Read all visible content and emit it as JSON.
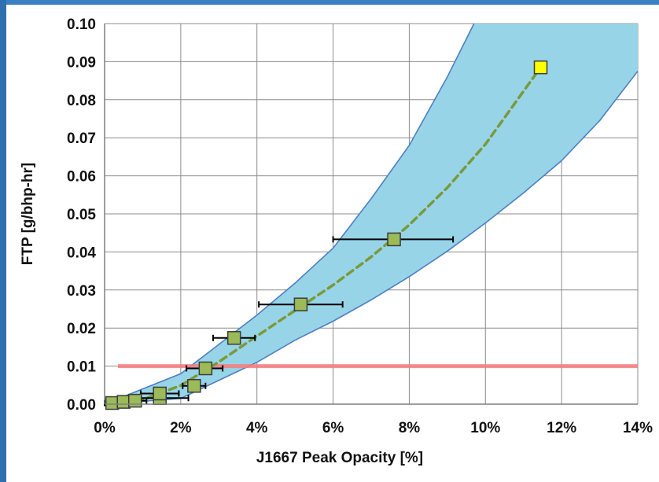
{
  "chart_data": {
    "type": "scatter",
    "title": "",
    "xlabel": "J1667 Peak Opacity [%]",
    "ylabel": "FTP [g/bhp-hr]",
    "xlim": [
      0,
      14
    ],
    "ylim": [
      0,
      0.1
    ],
    "x_ticks": [
      0,
      2,
      4,
      6,
      8,
      10,
      12,
      14
    ],
    "x_tick_labels": [
      "0%",
      "2%",
      "4%",
      "6%",
      "8%",
      "10%",
      "12%",
      "14%"
    ],
    "y_ticks": [
      0,
      0.01,
      0.02,
      0.03,
      0.04,
      0.05,
      0.06,
      0.07,
      0.08,
      0.09,
      0.1
    ],
    "y_tick_labels": [
      "0.00",
      "0.01",
      "0.02",
      "0.03",
      "0.04",
      "0.05",
      "0.06",
      "0.07",
      "0.08",
      "0.09",
      "0.10"
    ],
    "grid": true,
    "series": [
      {
        "points": [
          {
            "x": 0.2,
            "y": 0.0003,
            "err_low": 0.2,
            "err_high": 0.2
          },
          {
            "x": 0.5,
            "y": 0.0006,
            "err_low": 0.3,
            "err_high": 0.3
          },
          {
            "x": 0.8,
            "y": 0.0009,
            "err_low": 0.3,
            "err_high": 0.3
          },
          {
            "x": 1.45,
            "y": 0.0016,
            "err_low": 0.55,
            "err_high": 0.75
          },
          {
            "x": 1.45,
            "y": 0.0028,
            "err_low": 0.5,
            "err_high": 0.5
          },
          {
            "x": 2.35,
            "y": 0.0048,
            "err_low": 0.3,
            "err_high": 0.3
          },
          {
            "x": 2.65,
            "y": 0.0094,
            "err_low": 0.5,
            "err_high": 0.45
          },
          {
            "x": 3.4,
            "y": 0.0174,
            "err_low": 0.55,
            "err_high": 0.55
          },
          {
            "x": 5.15,
            "y": 0.0262,
            "err_low": 1.1,
            "err_high": 1.1
          },
          {
            "x": 7.6,
            "y": 0.0433,
            "err_low": 1.6,
            "err_high": 1.55
          },
          {
            "x": 11.45,
            "y": 0.0885
          }
        ],
        "colors": {
          "marker": "#9bbb59",
          "marker_outline": "#3b3b3b",
          "highlight_marker": "#ffff00"
        }
      },
      {
        "type": "line",
        "style": "dashed",
        "color": "#7a9a3a",
        "x": [
          0.2,
          1,
          2,
          3,
          4,
          5,
          6,
          7,
          8,
          9,
          10,
          11.45
        ],
        "y": [
          0.0005,
          0.0012,
          0.0049,
          0.0111,
          0.0179,
          0.0246,
          0.0313,
          0.0387,
          0.0471,
          0.0569,
          0.0683,
          0.0885
        ]
      }
    ],
    "band": {
      "fill": "#97d4e8",
      "edge": "#4e7fc0",
      "upper": {
        "x": [
          0,
          2,
          4,
          5,
          6,
          7,
          8,
          9,
          9.7
        ],
        "y": [
          0,
          0.008,
          0.0234,
          0.0318,
          0.041,
          0.054,
          0.068,
          0.086,
          0.1
        ]
      },
      "lower": {
        "x": [
          0,
          2,
          4,
          5,
          6,
          7,
          8,
          9,
          10,
          11,
          12,
          13,
          14
        ],
        "y": [
          0,
          0.0015,
          0.011,
          0.0168,
          0.0218,
          0.0274,
          0.0335,
          0.0402,
          0.0476,
          0.0555,
          0.064,
          0.0745,
          0.0875
        ]
      }
    },
    "reference_line": {
      "y": 0.01,
      "x_start": 0.35,
      "x_end": 14,
      "color": "#f47c7c"
    }
  }
}
